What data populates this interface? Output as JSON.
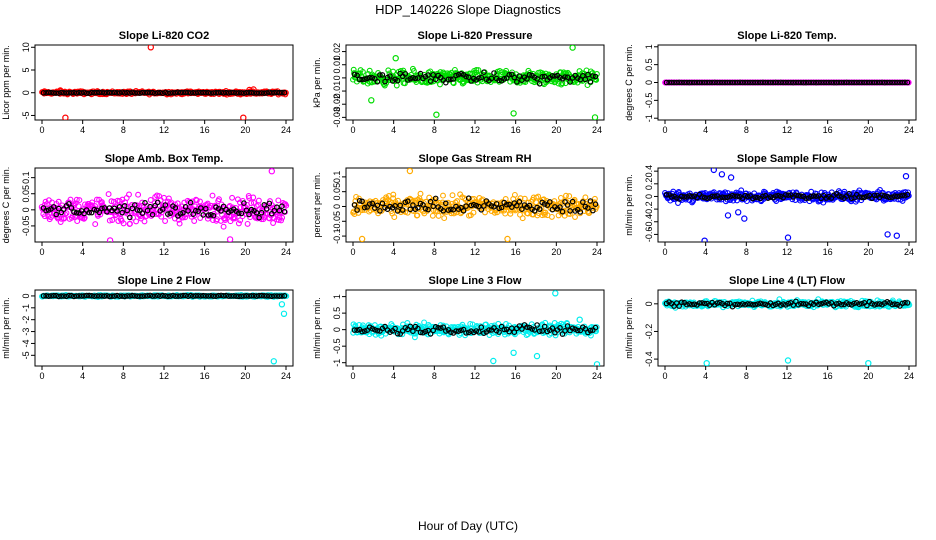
{
  "figure": {
    "title": "HDP_140226  Slope Diagnostics",
    "xlabel": "Hour of Day (UTC)"
  },
  "chart_data": [
    {
      "type": "scatter",
      "title": "Slope Li-820 CO2",
      "ylabel": "Licor ppm per min.",
      "xticks": [
        0,
        4,
        8,
        12,
        16,
        20,
        24
      ],
      "xlim": [
        0,
        24
      ],
      "yticks": [
        -5,
        0,
        5,
        10
      ],
      "ylim": [
        -6,
        10.5
      ],
      "color": "#ff0000",
      "noise": 0.15,
      "spread": 0.5,
      "outliers": [
        [
          10.7,
          10
        ],
        [
          2.3,
          -5.5
        ],
        [
          19.8,
          -5.5
        ],
        [
          1.8,
          0.5
        ],
        [
          20.4,
          0.6
        ],
        [
          20.8,
          0.7
        ]
      ],
      "black_noise": 0.15
    },
    {
      "type": "scatter",
      "title": "Slope Li-820 Pressure",
      "ylabel": "kPa per min.",
      "xticks": [
        0,
        4,
        8,
        12,
        16,
        20,
        24
      ],
      "xlim": [
        0,
        24
      ],
      "yticks": [
        -0.03,
        -0.02,
        -0.01,
        0,
        0.01,
        0.02
      ],
      "ylim": [
        -0.032,
        0.025
      ],
      "color": "#00dd00",
      "noise": 0.004,
      "spread": 0.008,
      "outliers": [
        [
          8.2,
          -0.028
        ],
        [
          15.8,
          -0.027
        ],
        [
          23.8,
          -0.03
        ],
        [
          21.6,
          0.023
        ],
        [
          1.8,
          -0.017
        ],
        [
          4.2,
          0.015
        ]
      ],
      "black_noise": 0.005
    },
    {
      "type": "scatter",
      "title": "Slope Li-820 Temp.",
      "ylabel": "degrees C per min.",
      "xticks": [
        0,
        4,
        8,
        12,
        16,
        20,
        24
      ],
      "xlim": [
        0,
        24
      ],
      "yticks": [
        -1,
        -0.5,
        0,
        0.5,
        1
      ],
      "ylim": [
        -1.05,
        1.05
      ],
      "color": "#ff00ff",
      "noise": 0.003,
      "spread": 0.005,
      "outliers": [],
      "black_noise": 0.003
    },
    {
      "type": "scatter",
      "title": "Slope Amb. Box Temp.",
      "ylabel": "degrees C per min.",
      "xticks": [
        0,
        4,
        8,
        12,
        16,
        20,
        24
      ],
      "xlim": [
        0,
        24
      ],
      "yticks": [
        -0.05,
        0,
        0.05,
        0.1
      ],
      "ylim": [
        -0.1,
        0.13
      ],
      "color": "#ff00ff",
      "noise": 0.03,
      "spread": 0.06,
      "outliers": [
        [
          22.6,
          0.12
        ],
        [
          6.7,
          -0.095
        ],
        [
          18.5,
          -0.092
        ]
      ],
      "black_noise": 0.03
    },
    {
      "type": "scatter",
      "title": "Slope Gas Stream RH",
      "ylabel": "percent per min.",
      "xticks": [
        0,
        4,
        8,
        12,
        16,
        20,
        24
      ],
      "xlim": [
        0,
        24
      ],
      "yticks": [
        -0.1,
        -0.05,
        0,
        0.05,
        0.1
      ],
      "ylim": [
        -0.12,
        0.13
      ],
      "color": "#ffaa00",
      "noise": 0.03,
      "spread": 0.05,
      "outliers": [
        [
          5.6,
          0.12
        ],
        [
          0.9,
          -0.11
        ],
        [
          15.2,
          -0.11
        ]
      ],
      "black_noise": 0.035
    },
    {
      "type": "scatter",
      "title": "Slope Sample Flow",
      "ylabel": "ml/min per min.",
      "xticks": [
        0,
        4,
        8,
        12,
        16,
        20,
        24
      ],
      "xlim": [
        0,
        24
      ],
      "yticks": [
        -0.6,
        -0.4,
        -0.2,
        0,
        0.2,
        0.4
      ],
      "ylim": [
        -0.72,
        0.45
      ],
      "color": "#0000ff",
      "noise": 0.05,
      "spread": 0.12,
      "outliers": [
        [
          3.9,
          -0.7
        ],
        [
          12.1,
          -0.65
        ],
        [
          4.8,
          0.42
        ],
        [
          5.6,
          0.35
        ],
        [
          6.5,
          0.3
        ],
        [
          7.8,
          -0.35
        ],
        [
          21.9,
          -0.6
        ],
        [
          22.8,
          -0.62
        ],
        [
          6.2,
          -0.3
        ],
        [
          7.2,
          -0.25
        ],
        [
          23.7,
          0.32
        ]
      ],
      "black_noise": 0.05
    },
    {
      "type": "scatter",
      "title": "Slope Line 2 Flow",
      "ylabel": "ml/min per min.",
      "xticks": [
        0,
        4,
        8,
        12,
        16,
        20,
        24
      ],
      "xlim": [
        0,
        24
      ],
      "yticks": [
        -5,
        -4,
        -3,
        -2,
        -1,
        0
      ],
      "ylim": [
        -5.9,
        0.5
      ],
      "color": "#00eeee",
      "noise": 0.08,
      "spread": 0.1,
      "outliers": [
        [
          22.8,
          -5.5
        ],
        [
          23.8,
          -1.5
        ],
        [
          23.6,
          -0.7
        ]
      ],
      "black_noise": 0.06
    },
    {
      "type": "scatter",
      "title": "Slope Line 3 Flow",
      "ylabel": "ml/min per min.",
      "xticks": [
        0,
        4,
        8,
        12,
        16,
        20,
        24
      ],
      "xlim": [
        0,
        24
      ],
      "yticks": [
        -1,
        -0.5,
        0,
        0.5,
        1
      ],
      "ylim": [
        -1.1,
        1.2
      ],
      "color": "#00eeee",
      "noise": 0.18,
      "spread": 0.25,
      "outliers": [
        [
          19.9,
          1.1
        ],
        [
          15.8,
          -0.7
        ],
        [
          18.1,
          -0.8
        ],
        [
          13.8,
          -0.95
        ],
        [
          24,
          -1.05
        ],
        [
          22.3,
          0.3
        ]
      ],
      "black_noise": 0.2
    },
    {
      "type": "scatter",
      "title": "Slope Line 4 (LT) Flow",
      "ylabel": "ml/min per min.",
      "xticks": [
        0,
        4,
        8,
        12,
        16,
        20,
        24
      ],
      "xlim": [
        0,
        24
      ],
      "yticks": [
        -0.4,
        -0.2,
        0
      ],
      "ylim": [
        -0.45,
        0.1
      ],
      "color": "#00eeee",
      "noise": 0.025,
      "spread": 0.035,
      "outliers": [
        [
          4.1,
          -0.43
        ],
        [
          12.1,
          -0.41
        ],
        [
          20,
          -0.43
        ]
      ],
      "black_noise": 0.025
    }
  ]
}
